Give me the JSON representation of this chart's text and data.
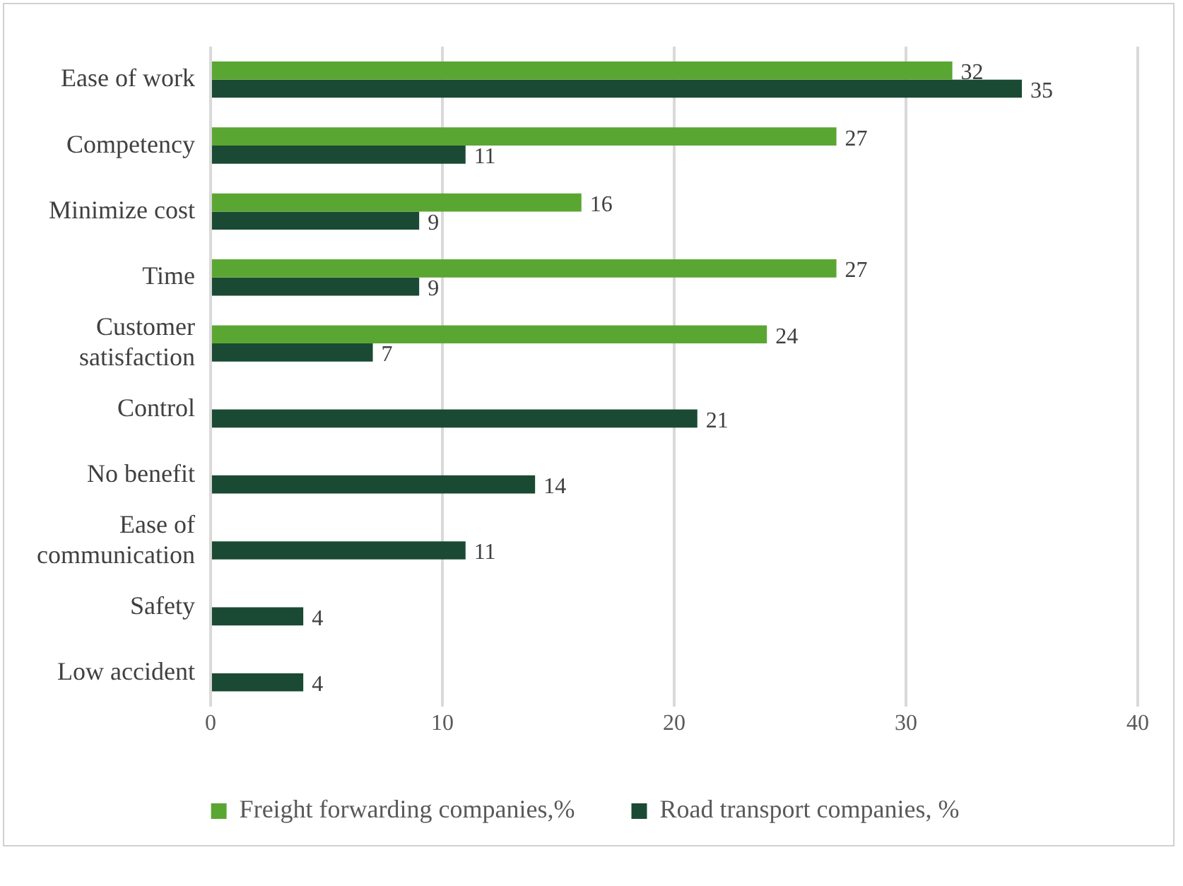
{
  "chart_data": {
    "type": "bar",
    "orientation": "horizontal",
    "categories": [
      "Ease of work",
      "Competency",
      "Minimize cost",
      "Time",
      "Customer satisfaction",
      "Control",
      "No benefit",
      "Ease of communication",
      "Safety",
      "Low accident"
    ],
    "series": [
      {
        "name": "Freight forwarding companies,%",
        "color": "#5aa632",
        "values": [
          32,
          27,
          16,
          27,
          24,
          null,
          null,
          null,
          null,
          null
        ]
      },
      {
        "name": "Road transport companies, %",
        "color": "#1a4a33",
        "values": [
          35,
          11,
          9,
          9,
          7,
          21,
          14,
          11,
          4,
          4
        ]
      }
    ],
    "xlim": [
      0,
      40
    ],
    "xticks": [
      0,
      10,
      20,
      30,
      40
    ],
    "grid": "x",
    "legend": "bottom",
    "data_labels": true
  }
}
